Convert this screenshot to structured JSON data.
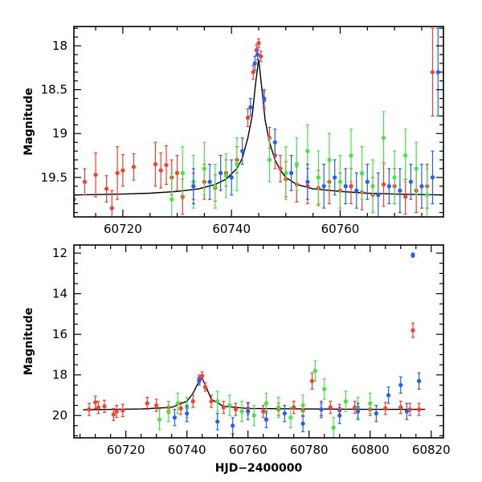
{
  "chart_data": [
    {
      "type": "scatter",
      "name": "top-panel",
      "ylabel": "Magnitude",
      "xlabel": "",
      "xlim": [
        60711,
        60779
      ],
      "ylim": [
        19.95,
        17.78
      ],
      "yinverted": true,
      "xticks": [
        "60720",
        "60740",
        "60760"
      ],
      "yticks": [
        "18",
        "18.5",
        "19",
        "19.5"
      ],
      "colors": {
        "blue": "#1f5fff",
        "green": "#44e544",
        "red": "#ff3b2a",
        "model": "#000000"
      },
      "model": {
        "x": [
          60711,
          60720,
          60725,
          60730,
          60734,
          60737,
          60739,
          60741,
          60742,
          60743,
          60743.8,
          60744.4,
          60745,
          60745.6,
          60746.2,
          60747,
          60748,
          60749,
          60750,
          60752,
          60755,
          60760,
          60765,
          60770,
          60779
        ],
        "y": [
          19.7,
          19.69,
          19.68,
          19.66,
          19.63,
          19.58,
          19.52,
          19.4,
          19.28,
          19.05,
          18.8,
          18.45,
          18.15,
          18.5,
          18.85,
          19.1,
          19.3,
          19.42,
          19.5,
          19.58,
          19.63,
          19.66,
          19.68,
          19.69,
          19.7
        ]
      },
      "series": [
        {
          "color": "red",
          "x": [
            60711,
            60713,
            60715,
            60717,
            60718,
            60719,
            60720,
            60722,
            60726,
            60727,
            60728,
            60729,
            60730,
            60731,
            60733,
            60735,
            60737,
            60739,
            60741,
            60743,
            60744,
            60744.6,
            60745,
            60745.4,
            60746,
            60747,
            60748,
            60749,
            60750,
            60752,
            60754,
            60756,
            60758,
            60760,
            60762,
            60764,
            60766,
            60768,
            60770,
            60772,
            60774,
            60776,
            60777
          ],
          "y": [
            19.75,
            19.55,
            19.47,
            19.63,
            19.85,
            19.45,
            19.42,
            19.38,
            19.35,
            19.42,
            19.36,
            19.5,
            19.45,
            19.72,
            19.6,
            19.55,
            19.62,
            19.45,
            19.3,
            18.82,
            18.3,
            18.05,
            17.97,
            18.12,
            18.62,
            19.05,
            19.25,
            19.4,
            19.52,
            19.58,
            19.6,
            19.62,
            19.55,
            19.65,
            19.6,
            19.67,
            19.7,
            19.58,
            19.6,
            19.72,
            19.65,
            19.6,
            18.3
          ],
          "err": [
            0.3,
            0.15,
            0.25,
            0.15,
            0.2,
            0.3,
            0.18,
            0.15,
            0.25,
            0.2,
            0.22,
            0.2,
            0.2,
            0.2,
            0.15,
            0.2,
            0.15,
            0.15,
            0.15,
            0.1,
            0.08,
            0.06,
            0.05,
            0.06,
            0.1,
            0.12,
            0.15,
            0.15,
            0.2,
            0.2,
            0.2,
            0.2,
            0.25,
            0.2,
            0.2,
            0.2,
            0.2,
            0.25,
            0.2,
            0.2,
            0.25,
            0.25,
            0.5
          ]
        },
        {
          "color": "green",
          "x": [
            60729,
            60731,
            60733,
            60735,
            60737,
            60739,
            60741,
            60747,
            60750,
            60752,
            60754,
            60756,
            60758,
            60760,
            60762,
            60764,
            60766,
            60768,
            60770,
            60772,
            60774,
            60776
          ],
          "y": [
            19.75,
            19.45,
            19.55,
            19.4,
            19.6,
            19.48,
            19.35,
            19.3,
            19.45,
            19.35,
            19.2,
            19.5,
            19.3,
            19.55,
            19.25,
            19.45,
            19.6,
            19.05,
            19.5,
            19.25,
            19.4,
            19.7
          ],
          "err": [
            0.3,
            0.3,
            0.3,
            0.3,
            0.25,
            0.25,
            0.3,
            0.25,
            0.3,
            0.3,
            0.3,
            0.3,
            0.3,
            0.3,
            0.3,
            0.3,
            0.3,
            0.3,
            0.3,
            0.3,
            0.3,
            0.3
          ]
        },
        {
          "color": "blue",
          "x": [
            60733,
            60736,
            60738,
            60740,
            60742,
            60743.5,
            60744.3,
            60744.8,
            60746,
            60748,
            60751,
            60754,
            60757,
            60759,
            60761,
            60763,
            60765,
            60767,
            60769,
            60771,
            60773,
            60775,
            60777,
            60778
          ],
          "y": [
            19.6,
            19.55,
            19.45,
            19.5,
            19.2,
            18.7,
            18.2,
            18.1,
            18.6,
            19.1,
            19.45,
            19.55,
            19.6,
            19.5,
            19.6,
            19.65,
            19.55,
            19.7,
            19.6,
            19.65,
            19.55,
            19.6,
            19.5,
            18.3
          ],
          "err": [
            0.2,
            0.2,
            0.2,
            0.2,
            0.15,
            0.1,
            0.08,
            0.06,
            0.1,
            0.15,
            0.2,
            0.2,
            0.25,
            0.2,
            0.2,
            0.2,
            0.2,
            0.25,
            0.2,
            0.25,
            0.2,
            0.25,
            0.3,
            0.5
          ]
        }
      ]
    },
    {
      "type": "scatter",
      "name": "bottom-panel",
      "ylabel": "Magnitude",
      "xlabel": "HJD−2400000",
      "xlim": [
        60703,
        60824
      ],
      "ylim": [
        21.1,
        11.6
      ],
      "yinverted": true,
      "xticks": [
        "60720",
        "60740",
        "60760",
        "60780",
        "60800",
        "60820"
      ],
      "yticks": [
        "12",
        "14",
        "16",
        "18",
        "20"
      ],
      "colors": {
        "blue": "#1f5fff",
        "green": "#44e544",
        "red": "#ff3b2a",
        "model": "#000000"
      },
      "model": {
        "x": [
          60706,
          60725,
          60735,
          60740,
          60742,
          60744,
          60745,
          60746,
          60748,
          60752,
          60760,
          60780,
          60800,
          60818
        ],
        "y": [
          19.72,
          19.68,
          19.6,
          19.3,
          18.9,
          18.3,
          18.15,
          18.5,
          19.2,
          19.55,
          19.65,
          19.68,
          19.7,
          19.7
        ]
      },
      "series": [
        {
          "color": "red",
          "x": [
            60708,
            60710,
            60711,
            60713,
            60716,
            60717,
            60719,
            60727,
            60730,
            60734,
            60738,
            60742,
            60744,
            60745,
            60746,
            60748,
            60752,
            60756,
            60760,
            60765,
            60770,
            60775,
            60778,
            60781,
            60784,
            60787,
            60790,
            60795,
            60800,
            60805,
            60810,
            60813,
            60814,
            60816
          ],
          "y": [
            19.7,
            19.35,
            19.6,
            19.55,
            19.95,
            19.8,
            19.75,
            19.4,
            19.5,
            19.6,
            19.65,
            19.3,
            18.2,
            18.05,
            18.6,
            19.3,
            19.6,
            19.7,
            19.65,
            19.8,
            19.7,
            19.6,
            19.75,
            18.3,
            19.7,
            19.6,
            19.75,
            19.6,
            19.7,
            19.65,
            19.6,
            19.7,
            15.8,
            19.7
          ],
          "err": [
            0.3,
            0.3,
            0.3,
            0.3,
            0.3,
            0.3,
            0.3,
            0.3,
            0.3,
            0.3,
            0.3,
            0.3,
            0.2,
            0.2,
            0.2,
            0.3,
            0.3,
            0.3,
            0.3,
            0.3,
            0.3,
            0.3,
            0.3,
            0.4,
            0.3,
            0.3,
            0.3,
            0.3,
            0.3,
            0.3,
            0.3,
            0.3,
            0.35,
            0.3
          ]
        },
        {
          "color": "green",
          "x": [
            60731,
            60734,
            60737,
            60740,
            60750,
            60754,
            60758,
            60762,
            60766,
            60770,
            60774,
            60778,
            60782,
            60785,
            60788,
            60792,
            60796,
            60800
          ],
          "y": [
            20.2,
            19.8,
            19.4,
            19.6,
            19.3,
            19.5,
            19.8,
            20.0,
            19.4,
            19.6,
            20.1,
            19.5,
            17.8,
            18.7,
            20.6,
            19.3,
            19.6,
            19.4
          ],
          "err": [
            0.5,
            0.5,
            0.5,
            0.5,
            0.5,
            0.5,
            0.5,
            0.5,
            0.5,
            0.5,
            0.5,
            0.5,
            0.5,
            0.5,
            0.5,
            0.5,
            0.5,
            0.5
          ]
        },
        {
          "color": "blue",
          "x": [
            60736,
            60740,
            60744,
            60750,
            60755,
            60760,
            60766,
            60772,
            60778,
            60784,
            60790,
            60796,
            60802,
            60806,
            60810,
            60812,
            60814,
            60816
          ],
          "y": [
            20.1,
            19.9,
            18.3,
            20.3,
            20.5,
            19.8,
            20.2,
            19.9,
            20.4,
            19.7,
            20.0,
            19.8,
            19.9,
            19.0,
            18.5,
            19.8,
            12.1,
            18.3
          ],
          "err": [
            0.4,
            0.4,
            0.2,
            0.4,
            0.4,
            0.4,
            0.4,
            0.4,
            0.4,
            0.4,
            0.4,
            0.4,
            0.4,
            0.4,
            0.4,
            0.4,
            0.1,
            0.4
          ]
        }
      ]
    }
  ]
}
